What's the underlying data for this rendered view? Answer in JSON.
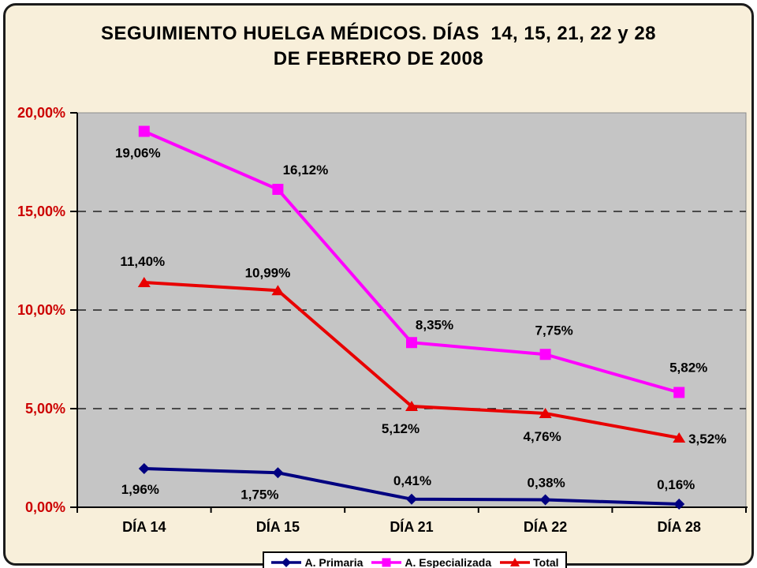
{
  "title": {
    "line1": "SEGUIMIENTO HUELGA MÉDICOS. DÍAS  14, 15, 21, 22 y 28",
    "line2": "DE FEBRERO DE 2008"
  },
  "colors": {
    "card_background": "#F8EFDA",
    "plot_background": "#C5C5C5",
    "plot_outline": "#8c8c8c",
    "axis_line": "#000000",
    "gridline": "#000000",
    "y_tick_label": "#CC0000",
    "x_tick_label": "#000000",
    "data_label": "#000000",
    "legend_background": "#FFFFFF",
    "legend_border": "#000000"
  },
  "chart_data": {
    "type": "line",
    "title": "SEGUIMIENTO HUELGA MÉDICOS. DÍAS 14, 15, 21, 22 y 28 DE FEBRERO DE 2008",
    "xlabel": "",
    "ylabel": "",
    "categories": [
      "DÍA 14",
      "DÍA 15",
      "DÍA 21",
      "DÍA 22",
      "DÍA 28"
    ],
    "ylim": [
      0,
      20
    ],
    "grid": "horizontal dashed at 5%, 10%, 15%",
    "legend_position": "bottom-center",
    "yticks": [
      {
        "value": 20,
        "label": "20,00%"
      },
      {
        "value": 15,
        "label": "15,00%"
      },
      {
        "value": 10,
        "label": "10,00%"
      },
      {
        "value": 5,
        "label": "5,00%"
      },
      {
        "value": 0,
        "label": "0,00%"
      }
    ],
    "series": [
      {
        "id": "a-primaria",
        "name": "A. Primaria",
        "color": "#000080",
        "marker": "diamond",
        "values": [
          1.96,
          1.75,
          0.41,
          0.38,
          0.16
        ],
        "labels": [
          "1,96%",
          "1,75%",
          "0,41%",
          "0,38%",
          "0,16%"
        ],
        "label_offsets": [
          [
            -5,
            26
          ],
          [
            -23,
            27
          ],
          [
            1,
            -24
          ],
          [
            1,
            -22
          ],
          [
            -4,
            -25
          ]
        ]
      },
      {
        "id": "a-especializada",
        "name": "A. Especializada",
        "color": "#FF00FF",
        "marker": "square",
        "values": [
          19.06,
          16.12,
          8.35,
          7.75,
          5.82
        ],
        "labels": [
          "19,06%",
          "16,12%",
          "8,35%",
          "7,75%",
          "5,82%"
        ],
        "label_offsets": [
          [
            -8,
            27
          ],
          [
            35,
            -25
          ],
          [
            29,
            -23
          ],
          [
            11,
            -31
          ],
          [
            12,
            -32
          ]
        ]
      },
      {
        "id": "total",
        "name": "Total",
        "color": "#E80000",
        "marker": "triangle",
        "values": [
          11.4,
          10.99,
          5.12,
          4.76,
          3.52
        ],
        "labels": [
          "11,40%",
          "10,99%",
          "5,12%",
          "4,76%",
          "3,52%"
        ],
        "label_offsets": [
          [
            -2,
            -27
          ],
          [
            -13,
            -23
          ],
          [
            -14,
            28
          ],
          [
            -4,
            29
          ],
          [
            36,
            1
          ]
        ]
      }
    ]
  }
}
